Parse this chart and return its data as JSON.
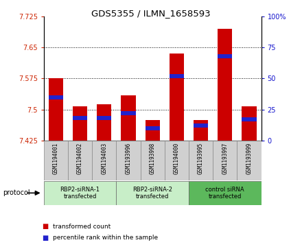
{
  "title": "GDS5355 / ILMN_1658593",
  "samples": [
    "GSM1194001",
    "GSM1194002",
    "GSM1194003",
    "GSM1193996",
    "GSM1193998",
    "GSM1194000",
    "GSM1193995",
    "GSM1193997",
    "GSM1193999"
  ],
  "transformed_counts": [
    7.575,
    7.508,
    7.513,
    7.535,
    7.474,
    7.635,
    7.474,
    7.695,
    7.508
  ],
  "percentile_ranks": [
    35,
    18,
    18,
    22,
    10,
    52,
    12,
    68,
    17
  ],
  "ylim_left": [
    7.425,
    7.725
  ],
  "ylim_right": [
    0,
    100
  ],
  "yticks_left": [
    7.425,
    7.5,
    7.575,
    7.65,
    7.725
  ],
  "yticks_right": [
    0,
    25,
    50,
    75,
    100
  ],
  "groups": [
    {
      "label": "RBP2-siRNA-1\ntransfected",
      "indices": [
        0,
        1,
        2
      ],
      "color": "#c8eec8"
    },
    {
      "label": "RBP2-siRNA-2\ntransfected",
      "indices": [
        3,
        4,
        5
      ],
      "color": "#c8eec8"
    },
    {
      "label": "control siRNA\ntransfected",
      "indices": [
        6,
        7,
        8
      ],
      "color": "#5cb85c"
    }
  ],
  "bar_color_red": "#cc0000",
  "bar_color_blue": "#2222cc",
  "bar_width": 0.6,
  "protocol_label": "protocol",
  "legend_items": [
    {
      "label": "transformed count",
      "color": "#cc0000"
    },
    {
      "label": "percentile rank within the sample",
      "color": "#2222cc"
    }
  ],
  "sample_box_color": "#d0d0d0",
  "left_tick_color": "#cc2200",
  "right_tick_color": "#1111cc"
}
